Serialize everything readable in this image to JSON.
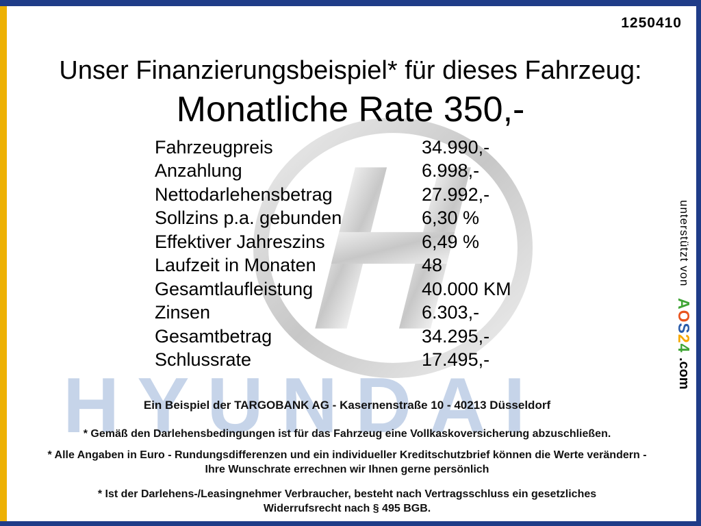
{
  "page": {
    "ref_number": "1250410",
    "title": "Unser Finanzierungsbeispiel* für dieses Fahrzeug:",
    "subtitle": "Monatliche Rate 350,-"
  },
  "finance": {
    "rows": [
      {
        "label": "Fahrzeugpreis",
        "value": "34.990,-"
      },
      {
        "label": "Anzahlung",
        "value": "6.998,-"
      },
      {
        "label": "Nettodarlehensbetrag",
        "value": "27.992,-"
      },
      {
        "label": "Sollzins p.a. gebunden",
        "value": "6,30 %"
      },
      {
        "label": "Effektiver Jahreszins",
        "value": "6,49 %"
      },
      {
        "label": "Laufzeit in Monaten",
        "value": "48"
      },
      {
        "label": "Gesamtlaufleistung",
        "value": "40.000 KM"
      },
      {
        "label": "Zinsen",
        "value": "6.303,-"
      },
      {
        "label": "Gesamtbetrag",
        "value": "34.295,-"
      },
      {
        "label": "Schlussrate",
        "value": "17.495,-"
      }
    ]
  },
  "footer": {
    "bank_line": "Ein Beispiel der TARGOBANK AG - Kasernenstraße 10 - 40213 Düsseldorf",
    "note1": "* Gemäß den Darlehensbedingungen ist für das Fahrzeug eine Vollkaskoversicherung abzuschließen.",
    "note2": "* Alle Angaben in Euro - Rundungsdifferenzen und ein individueller Kreditschutzbrief können die Werte verändern - Ihre Wunschrate errechnen wir Ihnen gerne persönlich",
    "note3": "* Ist der Darlehens-/Leasingnehmer Verbraucher, besteht nach Vertragsschluss ein gesetzliches Widerrufsrecht nach § 495 BGB."
  },
  "sidebar": {
    "supported_by": "unterstützt von",
    "brand_suffix": ".com",
    "brand_letters": [
      {
        "char": "A",
        "color": "#3fa535"
      },
      {
        "char": "O",
        "color": "#e8541e"
      },
      {
        "char": "S",
        "color": "#2a5caa"
      },
      {
        "char": "2",
        "color": "#f7a800"
      },
      {
        "char": "4",
        "color": "#3fa535"
      }
    ]
  },
  "watermark": {
    "brand_text": "HYUNDAI"
  },
  "colors": {
    "frame_blue": "#1f3c88",
    "frame_gold": "#edb104",
    "watermark_blue": "#c6d4e9",
    "logo_gray": "#d2d2d2"
  }
}
